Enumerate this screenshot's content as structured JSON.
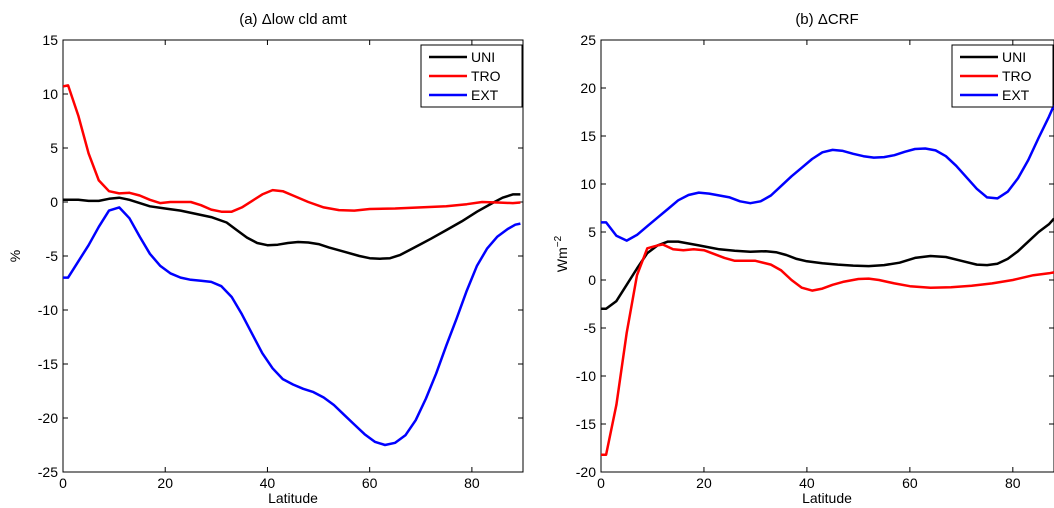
{
  "chart_data": [
    {
      "type": "line",
      "title": "(a) Δlow cld amt",
      "xlabel": "Latitude",
      "ylabel": "%",
      "xlim": [
        0,
        90
      ],
      "ylim": [
        -25,
        15
      ],
      "xticks": [
        "0",
        "20",
        "40",
        "60",
        "80"
      ],
      "yticks": [
        "15",
        "10",
        "5",
        "0",
        "-5",
        "-10",
        "-15",
        "-20",
        "-25"
      ],
      "legend_position": "top-right",
      "series": [
        {
          "name": "UNI",
          "color": "#000000",
          "points": [
            [
              0,
              0.2
            ],
            [
              3,
              0.2
            ],
            [
              5,
              0.1
            ],
            [
              7,
              0.1
            ],
            [
              9,
              0.3
            ],
            [
              11,
              0.4
            ],
            [
              13,
              0.2
            ],
            [
              15,
              -0.1
            ],
            [
              17,
              -0.4
            ],
            [
              20,
              -0.6
            ],
            [
              23,
              -0.8
            ],
            [
              26,
              -1.1
            ],
            [
              29,
              -1.4
            ],
            [
              32,
              -1.9
            ],
            [
              34,
              -2.6
            ],
            [
              36,
              -3.3
            ],
            [
              38,
              -3.8
            ],
            [
              40,
              -4.0
            ],
            [
              42,
              -3.95
            ],
            [
              44,
              -3.8
            ],
            [
              46,
              -3.7
            ],
            [
              48,
              -3.75
            ],
            [
              50,
              -3.9
            ],
            [
              52,
              -4.2
            ],
            [
              55,
              -4.6
            ],
            [
              58,
              -5.0
            ],
            [
              60,
              -5.2
            ],
            [
              62,
              -5.25
            ],
            [
              64,
              -5.2
            ],
            [
              66,
              -4.9
            ],
            [
              68,
              -4.4
            ],
            [
              70,
              -3.9
            ],
            [
              72,
              -3.4
            ],
            [
              75,
              -2.6
            ],
            [
              78,
              -1.8
            ],
            [
              81,
              -0.9
            ],
            [
              84,
              -0.1
            ],
            [
              86,
              0.4
            ],
            [
              88,
              0.7
            ],
            [
              89.5,
              0.7
            ]
          ]
        },
        {
          "name": "TRO",
          "color": "#ff0000",
          "points": [
            [
              0,
              10.7
            ],
            [
              1,
              10.8
            ],
            [
              3,
              8.0
            ],
            [
              5,
              4.5
            ],
            [
              7,
              2.0
            ],
            [
              9,
              1.0
            ],
            [
              11,
              0.8
            ],
            [
              13,
              0.85
            ],
            [
              15,
              0.6
            ],
            [
              17,
              0.2
            ],
            [
              19,
              -0.1
            ],
            [
              21,
              0.0
            ],
            [
              23,
              0.0
            ],
            [
              25,
              0.0
            ],
            [
              27,
              -0.3
            ],
            [
              29,
              -0.7
            ],
            [
              31,
              -0.9
            ],
            [
              33,
              -0.9
            ],
            [
              35,
              -0.5
            ],
            [
              37,
              0.1
            ],
            [
              39,
              0.7
            ],
            [
              41,
              1.1
            ],
            [
              43,
              1.0
            ],
            [
              45,
              0.6
            ],
            [
              48,
              0.0
            ],
            [
              51,
              -0.5
            ],
            [
              54,
              -0.75
            ],
            [
              57,
              -0.8
            ],
            [
              60,
              -0.65
            ],
            [
              65,
              -0.6
            ],
            [
              70,
              -0.5
            ],
            [
              75,
              -0.4
            ],
            [
              79,
              -0.2
            ],
            [
              82,
              0.0
            ],
            [
              85,
              -0.05
            ],
            [
              88,
              -0.1
            ],
            [
              89.5,
              -0.05
            ]
          ]
        },
        {
          "name": "EXT",
          "color": "#0000ff",
          "points": [
            [
              0,
              -7.0
            ],
            [
              1,
              -7.0
            ],
            [
              3,
              -5.5
            ],
            [
              5,
              -4.0
            ],
            [
              7,
              -2.3
            ],
            [
              9,
              -0.8
            ],
            [
              11,
              -0.5
            ],
            [
              13,
              -1.5
            ],
            [
              15,
              -3.2
            ],
            [
              17,
              -4.8
            ],
            [
              19,
              -5.9
            ],
            [
              21,
              -6.6
            ],
            [
              23,
              -7.0
            ],
            [
              25,
              -7.2
            ],
            [
              27,
              -7.3
            ],
            [
              29,
              -7.4
            ],
            [
              31,
              -7.8
            ],
            [
              33,
              -8.8
            ],
            [
              35,
              -10.4
            ],
            [
              37,
              -12.2
            ],
            [
              39,
              -14.0
            ],
            [
              41,
              -15.4
            ],
            [
              43,
              -16.4
            ],
            [
              45,
              -16.9
            ],
            [
              47,
              -17.3
            ],
            [
              49,
              -17.6
            ],
            [
              51,
              -18.1
            ],
            [
              53,
              -18.8
            ],
            [
              55,
              -19.7
            ],
            [
              57,
              -20.6
            ],
            [
              59,
              -21.5
            ],
            [
              61,
              -22.2
            ],
            [
              63,
              -22.5
            ],
            [
              65,
              -22.3
            ],
            [
              67,
              -21.6
            ],
            [
              69,
              -20.2
            ],
            [
              71,
              -18.2
            ],
            [
              73,
              -15.9
            ],
            [
              75,
              -13.3
            ],
            [
              77,
              -10.8
            ],
            [
              79,
              -8.2
            ],
            [
              81,
              -5.9
            ],
            [
              83,
              -4.3
            ],
            [
              85,
              -3.2
            ],
            [
              87,
              -2.5
            ],
            [
              88.5,
              -2.1
            ],
            [
              89.5,
              -2.0
            ]
          ]
        }
      ]
    },
    {
      "type": "line",
      "title": "(b) ΔCRF",
      "xlabel": "Latitude",
      "ylabel": "Wm",
      "ylabel_superscript": "−2",
      "xlim": [
        0,
        88
      ],
      "ylim": [
        -20,
        25
      ],
      "xticks": [
        "0",
        "20",
        "40",
        "60",
        "80"
      ],
      "yticks": [
        "25",
        "20",
        "15",
        "10",
        "5",
        "0",
        "-5",
        "-10",
        "-15",
        "-20"
      ],
      "legend_position": "top-right",
      "series": [
        {
          "name": "UNI",
          "color": "#000000",
          "points": [
            [
              0,
              -3.0
            ],
            [
              1,
              -3.0
            ],
            [
              3,
              -2.2
            ],
            [
              5,
              -0.5
            ],
            [
              7,
              1.2
            ],
            [
              9,
              2.8
            ],
            [
              11,
              3.6
            ],
            [
              13,
              4.0
            ],
            [
              15,
              4.0
            ],
            [
              17,
              3.8
            ],
            [
              19,
              3.6
            ],
            [
              21,
              3.4
            ],
            [
              23,
              3.2
            ],
            [
              26,
              3.05
            ],
            [
              29,
              2.95
            ],
            [
              32,
              3.0
            ],
            [
              34,
              2.9
            ],
            [
              36,
              2.6
            ],
            [
              38,
              2.2
            ],
            [
              40,
              1.95
            ],
            [
              43,
              1.75
            ],
            [
              46,
              1.6
            ],
            [
              49,
              1.5
            ],
            [
              52,
              1.45
            ],
            [
              55,
              1.55
            ],
            [
              58,
              1.8
            ],
            [
              61,
              2.3
            ],
            [
              64,
              2.5
            ],
            [
              67,
              2.4
            ],
            [
              70,
              2.0
            ],
            [
              73,
              1.6
            ],
            [
              75,
              1.55
            ],
            [
              77,
              1.7
            ],
            [
              79,
              2.2
            ],
            [
              81,
              3.0
            ],
            [
              83,
              4.0
            ],
            [
              85,
              5.0
            ],
            [
              87,
              5.8
            ],
            [
              88,
              6.4
            ]
          ]
        },
        {
          "name": "TRO",
          "color": "#ff0000",
          "points": [
            [
              0,
              -18.2
            ],
            [
              1,
              -18.2
            ],
            [
              3,
              -13.0
            ],
            [
              5,
              -5.5
            ],
            [
              7,
              0.5
            ],
            [
              9,
              3.3
            ],
            [
              11,
              3.6
            ],
            [
              12,
              3.7
            ],
            [
              14,
              3.2
            ],
            [
              16,
              3.1
            ],
            [
              18,
              3.2
            ],
            [
              20,
              3.1
            ],
            [
              22,
              2.7
            ],
            [
              24,
              2.3
            ],
            [
              26,
              2.0
            ],
            [
              28,
              2.0
            ],
            [
              30,
              2.0
            ],
            [
              33,
              1.6
            ],
            [
              35,
              1.0
            ],
            [
              37,
              0.0
            ],
            [
              39,
              -0.8
            ],
            [
              41,
              -1.1
            ],
            [
              43,
              -0.9
            ],
            [
              45,
              -0.5
            ],
            [
              47,
              -0.2
            ],
            [
              50,
              0.1
            ],
            [
              52,
              0.15
            ],
            [
              54,
              0.0
            ],
            [
              57,
              -0.35
            ],
            [
              60,
              -0.65
            ],
            [
              64,
              -0.8
            ],
            [
              68,
              -0.75
            ],
            [
              72,
              -0.6
            ],
            [
              76,
              -0.35
            ],
            [
              80,
              0.0
            ],
            [
              84,
              0.5
            ],
            [
              87,
              0.7
            ],
            [
              88,
              0.8
            ]
          ]
        },
        {
          "name": "EXT",
          "color": "#0000ff",
          "points": [
            [
              0,
              6.0
            ],
            [
              1,
              6.0
            ],
            [
              3,
              4.6
            ],
            [
              5,
              4.1
            ],
            [
              7,
              4.7
            ],
            [
              9,
              5.6
            ],
            [
              11,
              6.5
            ],
            [
              13,
              7.4
            ],
            [
              15,
              8.3
            ],
            [
              17,
              8.85
            ],
            [
              19,
              9.1
            ],
            [
              21,
              9.0
            ],
            [
              23,
              8.8
            ],
            [
              25,
              8.6
            ],
            [
              27,
              8.2
            ],
            [
              29,
              8.0
            ],
            [
              31,
              8.2
            ],
            [
              33,
              8.8
            ],
            [
              35,
              9.8
            ],
            [
              37,
              10.8
            ],
            [
              39,
              11.7
            ],
            [
              41,
              12.6
            ],
            [
              43,
              13.3
            ],
            [
              45,
              13.55
            ],
            [
              47,
              13.45
            ],
            [
              49,
              13.15
            ],
            [
              51,
              12.9
            ],
            [
              53,
              12.75
            ],
            [
              55,
              12.8
            ],
            [
              57,
              13.0
            ],
            [
              59,
              13.35
            ],
            [
              61,
              13.65
            ],
            [
              63,
              13.7
            ],
            [
              65,
              13.5
            ],
            [
              67,
              12.9
            ],
            [
              69,
              11.9
            ],
            [
              71,
              10.7
            ],
            [
              73,
              9.5
            ],
            [
              75,
              8.6
            ],
            [
              77,
              8.5
            ],
            [
              79,
              9.2
            ],
            [
              81,
              10.6
            ],
            [
              83,
              12.5
            ],
            [
              85,
              14.8
            ],
            [
              87,
              17.0
            ],
            [
              88,
              18.2
            ]
          ]
        }
      ]
    }
  ]
}
